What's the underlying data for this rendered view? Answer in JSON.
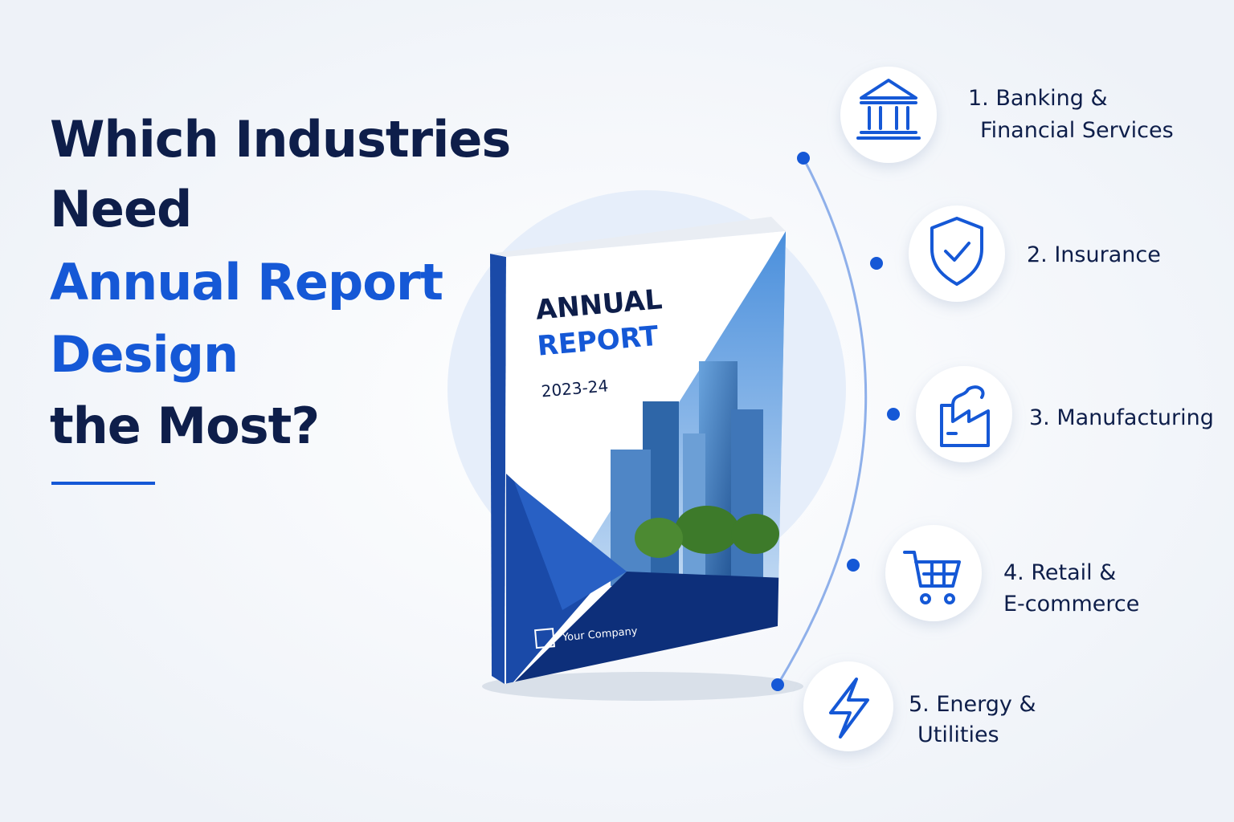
{
  "heading": {
    "lines": [
      "Which Industries",
      "Need",
      "Annual Report",
      "Design",
      "the Most?"
    ]
  },
  "book": {
    "title_1": "ANNUAL",
    "title_2": "REPORT",
    "year": "2023-24",
    "company": "Your Company"
  },
  "items": [
    {
      "lines": [
        "1. Banking &",
        "Financial Services"
      ]
    },
    {
      "lines": [
        "2. Insurance"
      ]
    },
    {
      "lines": [
        "3. Manufacturing"
      ]
    },
    {
      "lines": [
        "4. Retail &",
        "E-commerce"
      ]
    },
    {
      "lines": [
        "5. Energy &",
        "Utilities"
      ]
    }
  ]
}
